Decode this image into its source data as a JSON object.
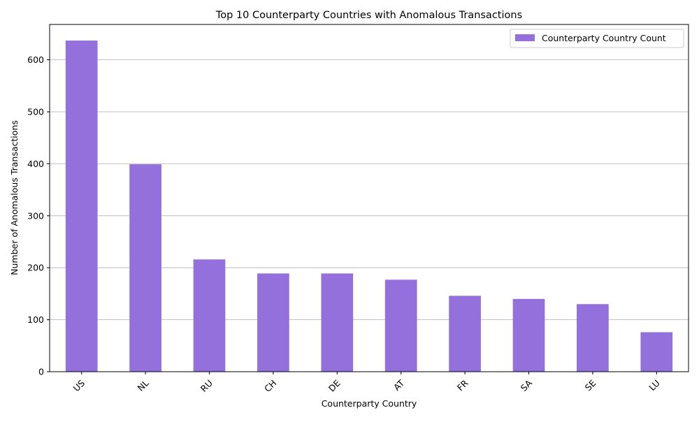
{
  "chart_data": {
    "type": "bar",
    "title": "Top 10 Counterparty Countries with Anomalous Transactions",
    "xlabel": "Counterparty Country",
    "ylabel": "Number of Anomalous Transactions",
    "categories": [
      "US",
      "NL",
      "RU",
      "CH",
      "DE",
      "AT",
      "FR",
      "SA",
      "SE",
      "LU"
    ],
    "series": [
      {
        "name": "Counterparty Country Count",
        "values": [
          637,
          399,
          216,
          189,
          189,
          177,
          146,
          140,
          130,
          76
        ]
      }
    ],
    "ylim": [
      0,
      668
    ],
    "yticks": [
      0,
      100,
      200,
      300,
      400,
      500,
      600
    ],
    "grid": "y",
    "legend": "top-right",
    "x_tick_rotation": 45,
    "bar_color": "#9370DB"
  }
}
